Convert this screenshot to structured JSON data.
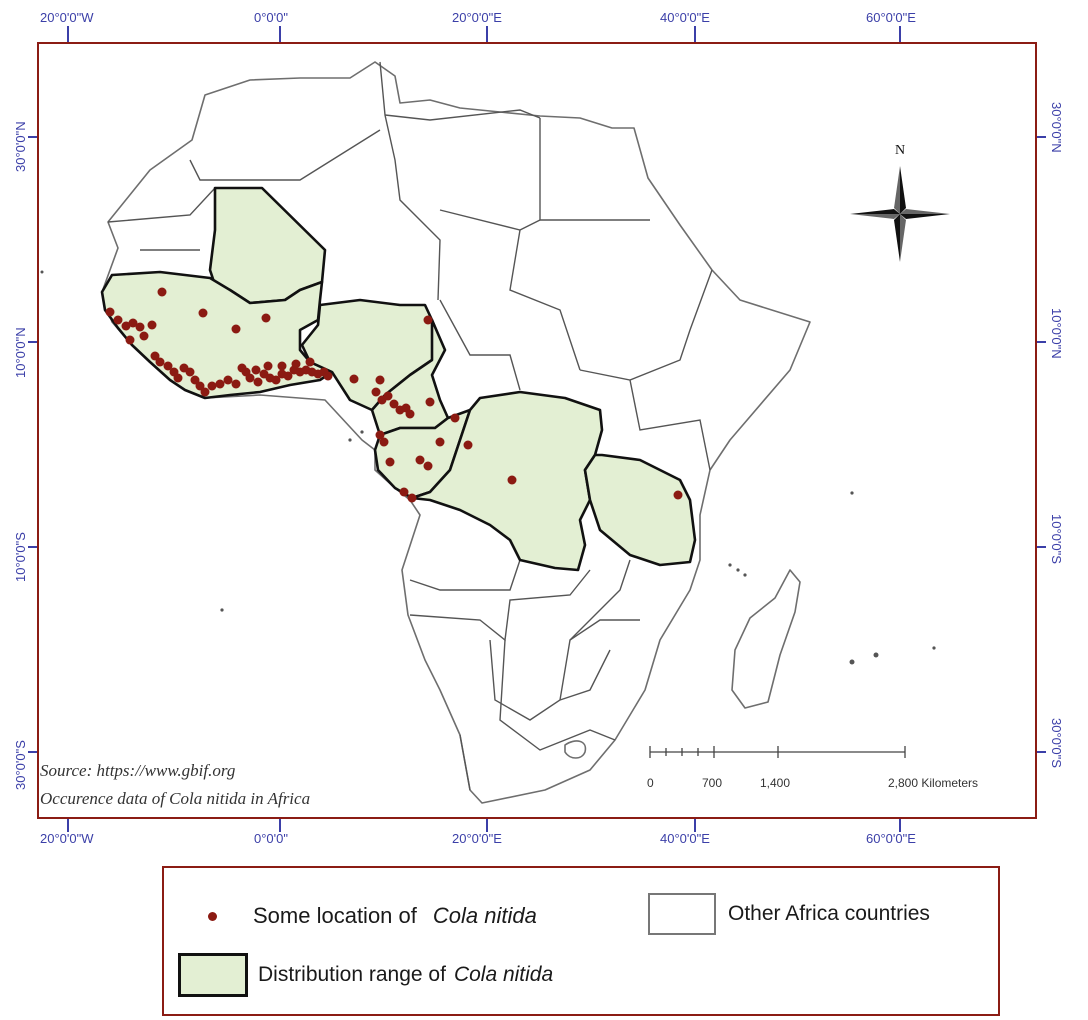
{
  "map": {
    "graticule": {
      "longitudes": [
        "20°0'0\"W",
        "0°0'0\"",
        "20°0'0\"E",
        "40°0'0\"E",
        "60°0'0\"E"
      ],
      "latitudes": [
        "30°0'0\"N",
        "10°0'0\"N",
        "10°0'0\"S",
        "30°0'0\"S"
      ]
    },
    "north_arrow_label": "N",
    "source_line1": "Source: https://www.gbif.org",
    "source_line2": "Occurence data of Cola nitida in Africa",
    "scale_bar": {
      "labels": [
        "0",
        "700",
        "1,400",
        "2,800 Kilometers"
      ]
    },
    "colors": {
      "frame": "#8b1c14",
      "range_fill": "#e3efd3",
      "occurrence_dot": "#8b1a12",
      "graticule_text": "#3b3fa8"
    }
  },
  "legend": {
    "occurrence_prefix": "Some location of",
    "occurrence_species": "Cola nitida",
    "other_label": "Other Africa countries",
    "range_prefix": "Distribution range of",
    "range_species": "Cola nitida"
  }
}
